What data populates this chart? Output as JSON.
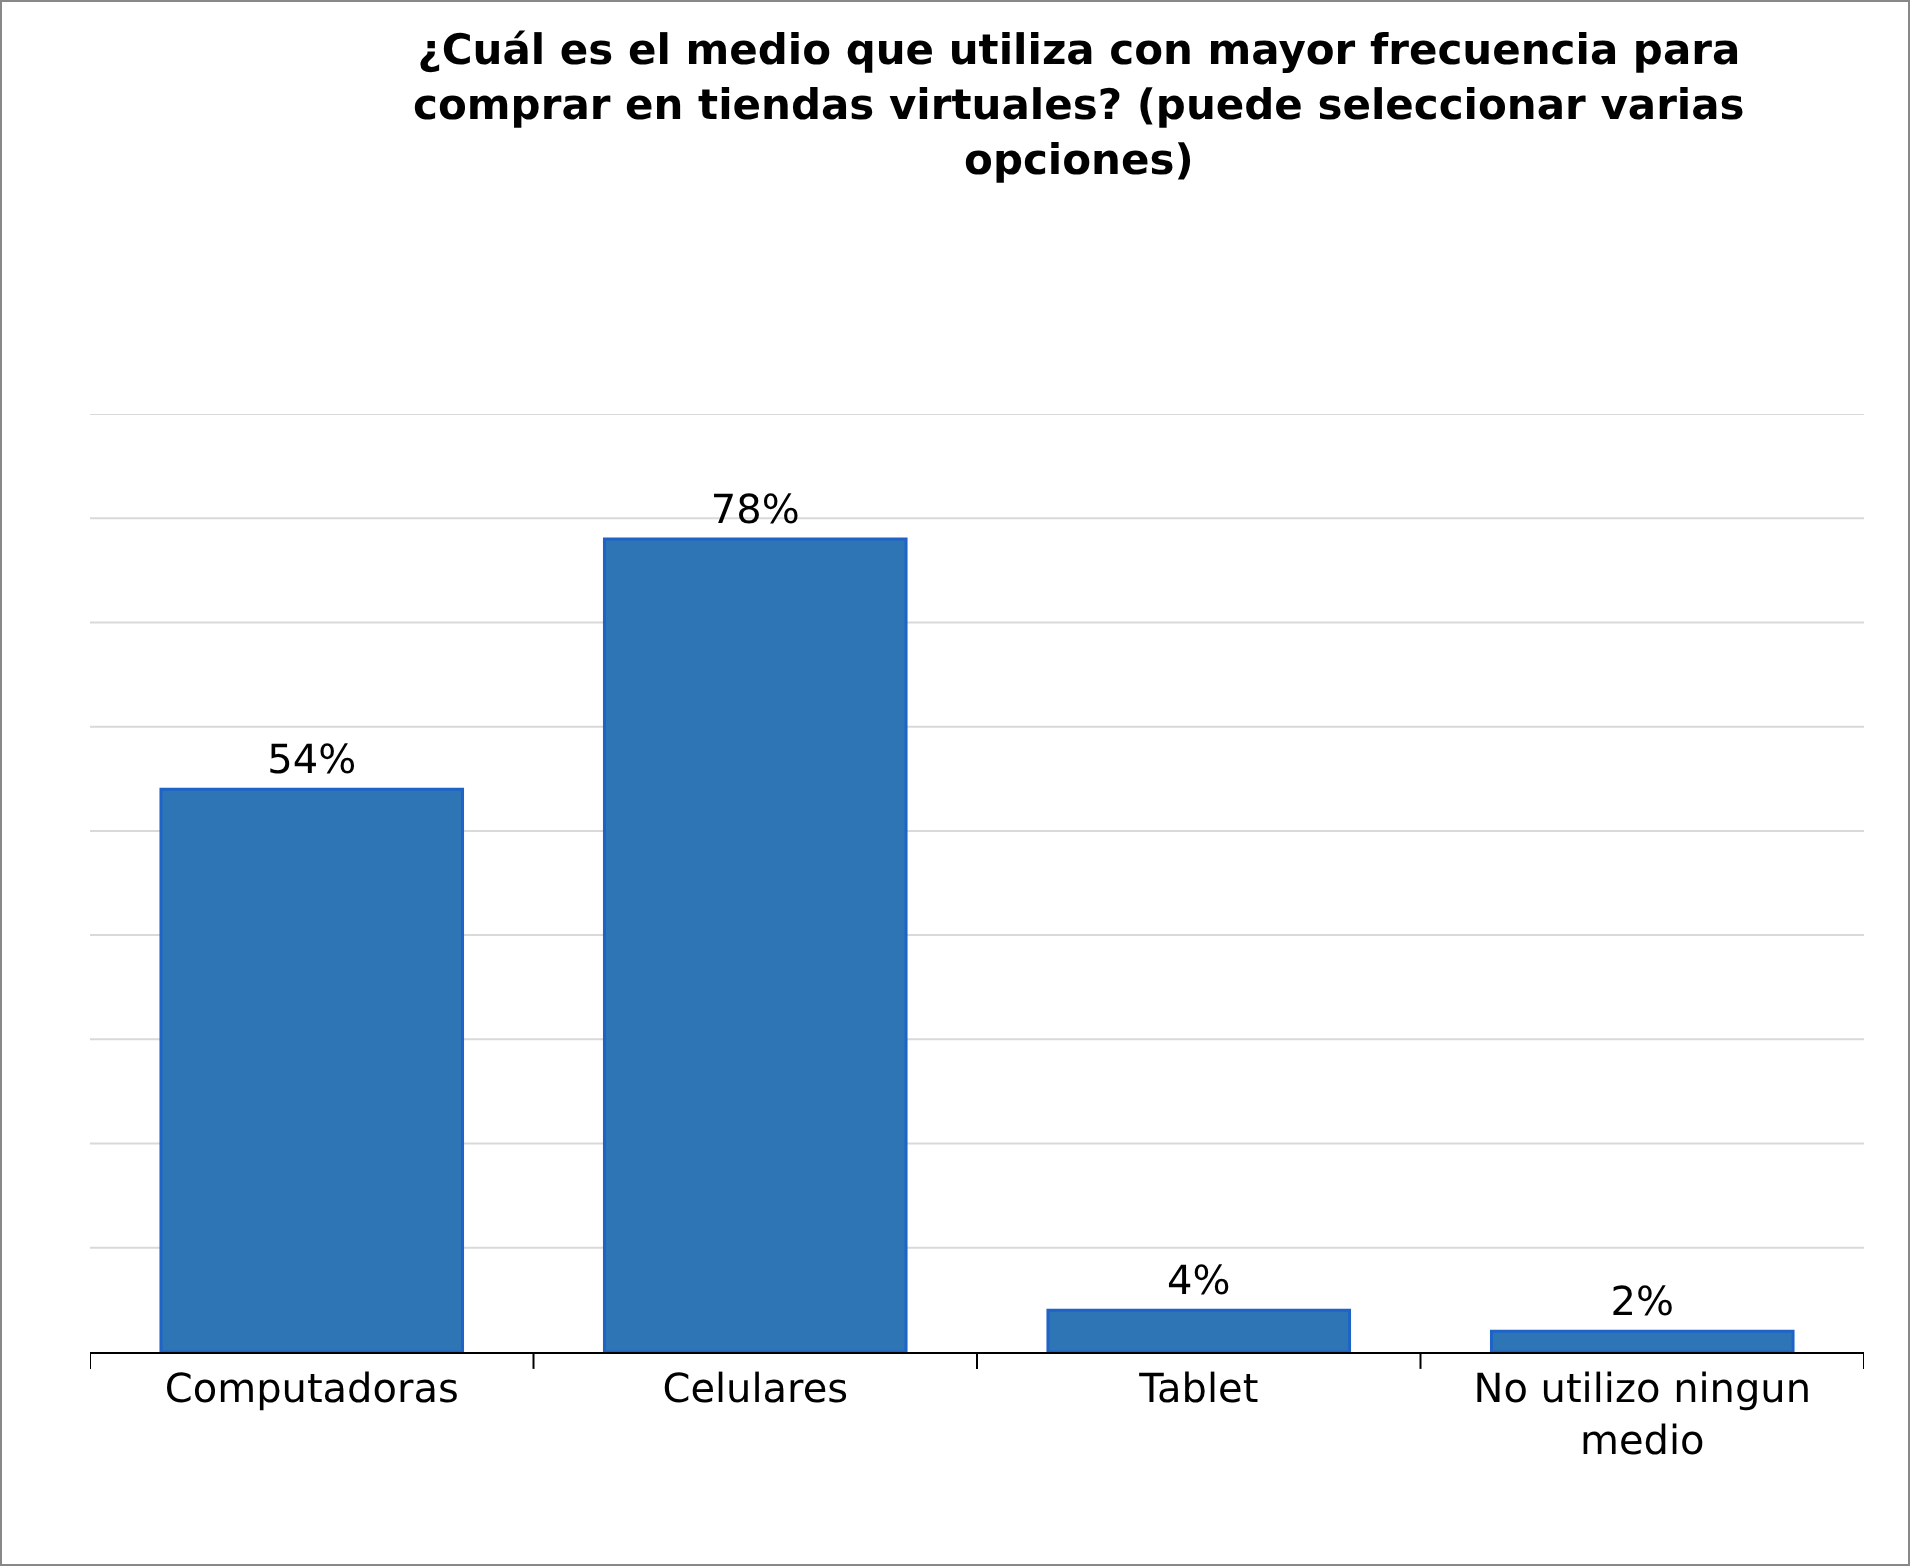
{
  "chart_data": {
    "type": "bar",
    "title": "¿Cuál es el medio que utiliza con mayor frecuencia para comprar en tiendas virtuales? (puede seleccionar varias opciones)",
    "categories": [
      "Computadoras",
      "Celulares",
      "Tablet",
      "No utilizo ningun medio"
    ],
    "values": [
      54,
      78,
      4,
      2
    ],
    "value_labels": [
      "54%",
      "78%",
      "4%",
      "2%"
    ],
    "color": "#2e75b6",
    "ylim": [
      0,
      90
    ],
    "yticks": [
      {
        "value": 0,
        "label": null
      },
      {
        "value": 10,
        "label": null
      },
      {
        "value": 20,
        "label": null
      },
      {
        "value": 30,
        "label": null
      },
      {
        "value": 40,
        "label": null
      },
      {
        "value": 50,
        "label": null
      },
      {
        "value": 60,
        "label": null
      },
      {
        "value": 70,
        "label": null
      },
      {
        "value": 80,
        "label": null
      },
      {
        "value": 90,
        "label": null
      }
    ],
    "grid": "y",
    "legend": false,
    "tick_labels": "x"
  }
}
